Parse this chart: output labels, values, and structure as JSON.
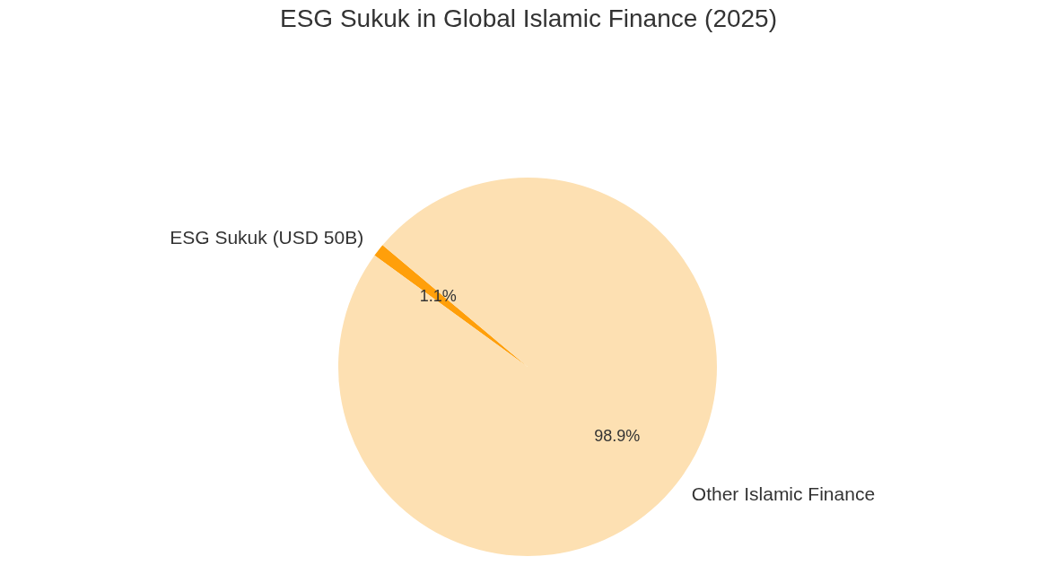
{
  "chart_data": {
    "type": "pie",
    "title": "ESG Sukuk in Global Islamic Finance (2025)",
    "categories": [
      "ESG Sukuk (USD 50B)",
      "Other Islamic Finance"
    ],
    "values": [
      1.1,
      98.9
    ],
    "colors": [
      "#ff9f0a",
      "#fde0b2"
    ],
    "value_labels": [
      "1.1%",
      "98.9%"
    ],
    "legend": false
  }
}
